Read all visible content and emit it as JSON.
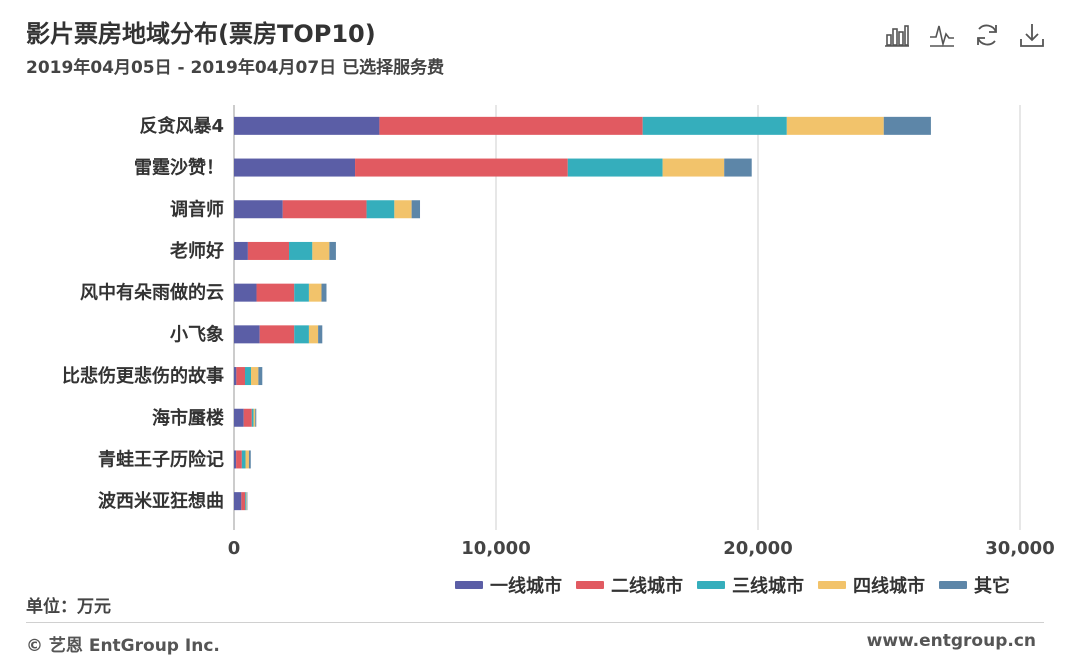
{
  "header": {
    "title": "影片票房地域分布(票房TOP10)",
    "subtitle": "2019年04月05日 - 2019年04月07日 已选择服务费"
  },
  "toolbar": {
    "icons": [
      "bar-chart-icon",
      "line-chart-icon",
      "refresh-icon",
      "download-icon"
    ]
  },
  "unit_label": "单位：万元",
  "footer": {
    "copyright": "© 艺恩 EntGroup Inc.",
    "website": "www.entgroup.cn"
  },
  "colors": {
    "tier1": "#5b5ea6",
    "tier2": "#e15a61",
    "tier3": "#35aebc",
    "tier4": "#f2c36b",
    "other": "#5d86a8"
  },
  "chart_data": {
    "type": "bar",
    "orientation": "horizontal",
    "stacked": true,
    "title": "影片票房地域分布(票房TOP10)",
    "xlabel": "",
    "ylabel": "",
    "xlim": [
      0,
      30000
    ],
    "xticks": [
      0,
      10000,
      20000,
      30000
    ],
    "xtick_labels": [
      "0",
      "10,000",
      "20,000",
      "30,000"
    ],
    "grid": true,
    "legend_position": "bottom-right",
    "categories": [
      "反贪风暴4",
      "雷霆沙赞！",
      "调音师",
      "老师好",
      "风中有朵雨做的云",
      "小飞象",
      "比悲伤更悲伤的故事",
      "海市蜃楼",
      "青蛙王子历险记",
      "波西米亚狂想曲"
    ],
    "series": [
      {
        "name": "一线城市",
        "color": "#5b5ea6",
        "values": [
          5550,
          4620,
          1860,
          530,
          860,
          980,
          90,
          370,
          80,
          280
        ]
      },
      {
        "name": "二线城市",
        "color": "#e15a61",
        "values": [
          10050,
          8120,
          3200,
          1570,
          1440,
          1320,
          330,
          310,
          220,
          150
        ]
      },
      {
        "name": "三线城市",
        "color": "#35aebc",
        "values": [
          5500,
          3620,
          1060,
          890,
          560,
          560,
          230,
          70,
          140,
          40
        ]
      },
      {
        "name": "四线城市",
        "color": "#f2c36b",
        "values": [
          3700,
          2350,
          660,
          650,
          480,
          350,
          280,
          60,
          130,
          20
        ]
      },
      {
        "name": "其它",
        "color": "#5d86a8",
        "values": [
          1800,
          1050,
          320,
          250,
          190,
          160,
          150,
          40,
          70,
          20
        ]
      }
    ]
  }
}
